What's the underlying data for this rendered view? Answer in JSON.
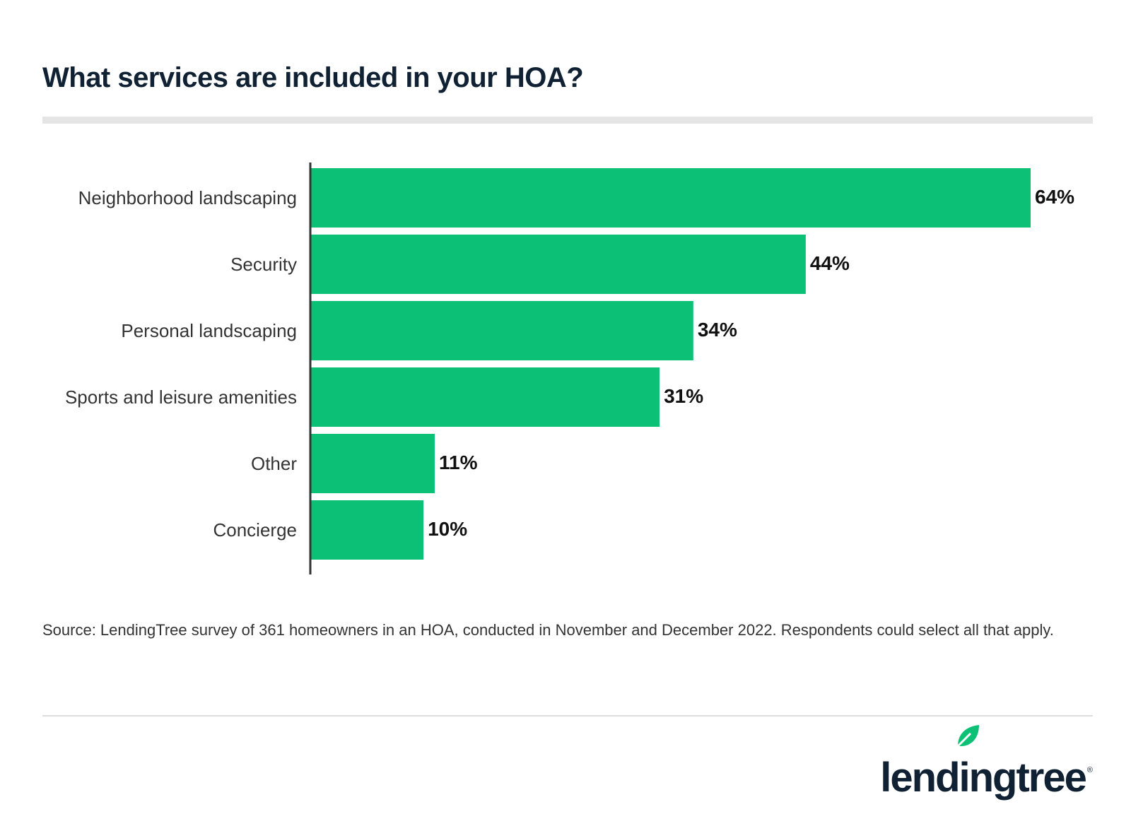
{
  "title": "What services are included in your HOA?",
  "chart_data": {
    "type": "bar",
    "orientation": "horizontal",
    "categories": [
      "Neighborhood landscaping",
      "Security",
      "Personal landscaping",
      "Sports and leisure amenities",
      "Other",
      "Concierge"
    ],
    "values": [
      64,
      44,
      34,
      31,
      11,
      10
    ],
    "value_labels": [
      "64%",
      "44%",
      "34%",
      "31%",
      "11%",
      "10%"
    ],
    "unit": "%",
    "xlim": [
      0,
      64
    ],
    "grid": false,
    "bar_color": "#0cc176"
  },
  "source": "Source: LendingTree survey of 361 homeowners in an HOA, conducted in November and December 2022. Respondents could select all that apply.",
  "logo": {
    "text": "lendingtree",
    "mark": "®",
    "icon": "leaf-icon",
    "leaf_color": "#0cc176",
    "text_color": "#0f2133"
  }
}
